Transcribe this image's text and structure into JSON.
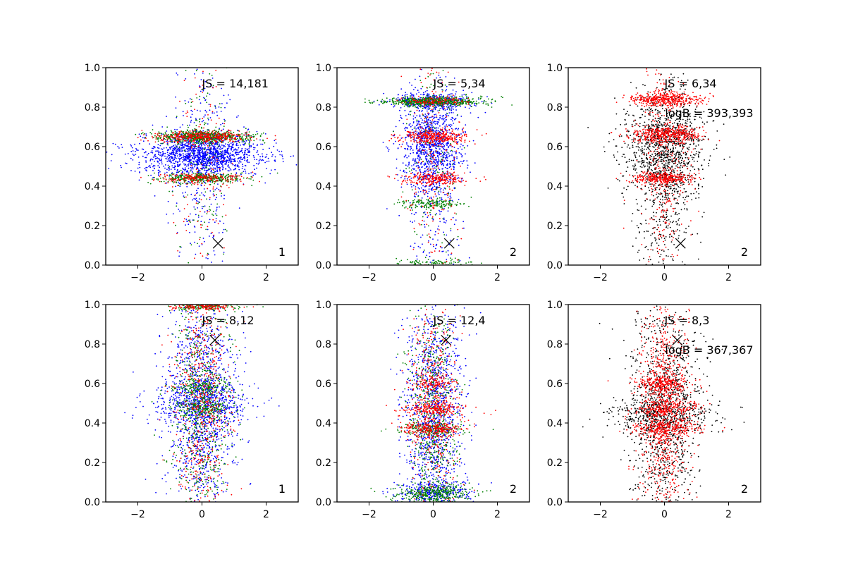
{
  "palette": {
    "blue": "#0000ff",
    "green": "#008000",
    "red": "#ff0000",
    "black": "#000000"
  },
  "axes_defaults": {
    "xlim": [
      -3,
      3
    ],
    "ylim": [
      0,
      1
    ],
    "xticks": [
      -2,
      0,
      2
    ],
    "yticks": [
      0.0,
      0.2,
      0.4,
      0.6,
      0.8,
      1.0
    ],
    "xtick_labels": [
      "−2",
      "0",
      "2"
    ],
    "ytick_labels": [
      "0.0",
      "0.2",
      "0.4",
      "0.6",
      "0.8",
      "1.0"
    ],
    "grid": false
  },
  "chart_data": [
    {
      "type": "scatter",
      "row": 0,
      "col": 0,
      "annotations": [
        "JS = 14,181"
      ],
      "corner_label": "1",
      "marker": {
        "x": 0.5,
        "y": 0.11,
        "symbol": "x"
      },
      "series": [
        {
          "color": "blue",
          "points": 1800,
          "clusters": [
            {
              "y": 0.56,
              "ysd": 0.05,
              "xsd": 0.95,
              "w": 0.8
            },
            {
              "y": 0.5,
              "ysd": 0.25,
              "xsd": 0.45,
              "w": 0.2
            }
          ]
        },
        {
          "color": "green",
          "points": 1100,
          "clusters": [
            {
              "y": 0.65,
              "ysd": 0.015,
              "xsd": 0.75,
              "w": 0.55
            },
            {
              "y": 0.44,
              "ysd": 0.012,
              "xsd": 0.65,
              "w": 0.3
            },
            {
              "y": 0.5,
              "ysd": 0.28,
              "xsd": 0.4,
              "w": 0.15
            }
          ]
        },
        {
          "color": "red",
          "points": 700,
          "clusters": [
            {
              "y": 0.65,
              "ysd": 0.015,
              "xsd": 0.75,
              "w": 0.5
            },
            {
              "y": 0.44,
              "ysd": 0.012,
              "xsd": 0.65,
              "w": 0.3
            },
            {
              "y": 0.5,
              "ysd": 0.28,
              "xsd": 0.4,
              "w": 0.2
            }
          ]
        }
      ]
    },
    {
      "type": "scatter",
      "row": 0,
      "col": 1,
      "annotations": [
        "JS = 5,34"
      ],
      "corner_label": "2",
      "marker": {
        "x": 0.5,
        "y": 0.11,
        "symbol": "x"
      },
      "series": [
        {
          "color": "blue",
          "points": 1600,
          "clusters": [
            {
              "y": 0.62,
              "ysd": 0.12,
              "xsd": 0.5,
              "w": 0.6
            },
            {
              "y": 0.83,
              "ysd": 0.02,
              "xsd": 0.6,
              "w": 0.2
            },
            {
              "y": 0.4,
              "ysd": 0.3,
              "xsd": 0.45,
              "w": 0.2
            }
          ]
        },
        {
          "color": "green",
          "points": 1000,
          "clusters": [
            {
              "y": 0.83,
              "ysd": 0.012,
              "xsd": 0.75,
              "w": 0.6
            },
            {
              "y": 0.31,
              "ysd": 0.012,
              "xsd": 0.5,
              "w": 0.15
            },
            {
              "y": 0.01,
              "ysd": 0.01,
              "xsd": 0.6,
              "w": 0.1
            },
            {
              "y": 0.5,
              "ysd": 0.3,
              "xsd": 0.4,
              "w": 0.15
            }
          ]
        },
        {
          "color": "red",
          "points": 900,
          "clusters": [
            {
              "y": 0.65,
              "ysd": 0.018,
              "xsd": 0.55,
              "w": 0.35
            },
            {
              "y": 0.44,
              "ysd": 0.015,
              "xsd": 0.5,
              "w": 0.25
            },
            {
              "y": 0.83,
              "ysd": 0.012,
              "xsd": 0.55,
              "w": 0.15
            },
            {
              "y": 0.5,
              "ysd": 0.3,
              "xsd": 0.4,
              "w": 0.25
            }
          ]
        }
      ]
    },
    {
      "type": "scatter",
      "row": 0,
      "col": 2,
      "annotations": [
        "JS = 6,34",
        "logB = 393,393"
      ],
      "corner_label": "2",
      "marker": {
        "x": 0.5,
        "y": 0.11,
        "symbol": "x"
      },
      "series": [
        {
          "color": "black",
          "points": 1500,
          "clusters": [
            {
              "y": 0.58,
              "ysd": 0.14,
              "xsd": 0.65,
              "w": 0.7
            },
            {
              "y": 0.4,
              "ysd": 0.3,
              "xsd": 0.45,
              "w": 0.3
            }
          ]
        },
        {
          "color": "red",
          "points": 1500,
          "clusters": [
            {
              "y": 0.84,
              "ysd": 0.018,
              "xsd": 0.55,
              "w": 0.3
            },
            {
              "y": 0.66,
              "ysd": 0.02,
              "xsd": 0.55,
              "w": 0.3
            },
            {
              "y": 0.44,
              "ysd": 0.015,
              "xsd": 0.5,
              "w": 0.2
            },
            {
              "y": 0.5,
              "ysd": 0.3,
              "xsd": 0.4,
              "w": 0.2
            }
          ]
        }
      ]
    },
    {
      "type": "scatter",
      "row": 1,
      "col": 0,
      "annotations": [
        "JS = 8,12"
      ],
      "corner_label": "1",
      "marker": {
        "x": 0.4,
        "y": 0.82,
        "symbol": "x"
      },
      "series": [
        {
          "color": "blue",
          "points": 1700,
          "clusters": [
            {
              "y": 0.5,
              "ysd": 0.28,
              "xsd": 0.55,
              "w": 0.75
            },
            {
              "y": 0.5,
              "ysd": 0.06,
              "xsd": 0.8,
              "w": 0.25
            }
          ]
        },
        {
          "color": "green",
          "points": 1100,
          "clusters": [
            {
              "y": 0.5,
              "ysd": 0.28,
              "xsd": 0.45,
              "w": 0.6
            },
            {
              "y": 0.99,
              "ysd": 0.01,
              "xsd": 0.5,
              "w": 0.15
            },
            {
              "y": 0.58,
              "ysd": 0.02,
              "xsd": 0.5,
              "w": 0.12
            },
            {
              "y": 0.48,
              "ysd": 0.02,
              "xsd": 0.5,
              "w": 0.13
            }
          ]
        },
        {
          "color": "red",
          "points": 700,
          "clusters": [
            {
              "y": 0.5,
              "ysd": 0.28,
              "xsd": 0.45,
              "w": 0.8
            },
            {
              "y": 0.99,
              "ysd": 0.01,
              "xsd": 0.45,
              "w": 0.2
            }
          ]
        }
      ]
    },
    {
      "type": "scatter",
      "row": 1,
      "col": 1,
      "annotations": [
        "JS = 12,4"
      ],
      "corner_label": "2",
      "marker": {
        "x": 0.4,
        "y": 0.82,
        "symbol": "x"
      },
      "series": [
        {
          "color": "blue",
          "points": 1500,
          "clusters": [
            {
              "y": 0.45,
              "ysd": 0.28,
              "xsd": 0.45,
              "w": 0.8
            },
            {
              "y": 0.04,
              "ysd": 0.03,
              "xsd": 0.6,
              "w": 0.2
            }
          ]
        },
        {
          "color": "green",
          "points": 1100,
          "clusters": [
            {
              "y": 0.45,
              "ysd": 0.28,
              "xsd": 0.4,
              "w": 0.55
            },
            {
              "y": 0.04,
              "ysd": 0.025,
              "xsd": 0.6,
              "w": 0.3
            },
            {
              "y": 0.37,
              "ysd": 0.015,
              "xsd": 0.5,
              "w": 0.15
            }
          ]
        },
        {
          "color": "red",
          "points": 1000,
          "clusters": [
            {
              "y": 0.47,
              "ysd": 0.018,
              "xsd": 0.5,
              "w": 0.22
            },
            {
              "y": 0.37,
              "ysd": 0.018,
              "xsd": 0.5,
              "w": 0.22
            },
            {
              "y": 0.6,
              "ysd": 0.015,
              "xsd": 0.4,
              "w": 0.1
            },
            {
              "y": 0.5,
              "ysd": 0.28,
              "xsd": 0.38,
              "w": 0.46
            }
          ]
        }
      ]
    },
    {
      "type": "scatter",
      "row": 1,
      "col": 2,
      "annotations": [
        "JS = 8,3",
        "logB = 367,367"
      ],
      "corner_label": "2",
      "marker": {
        "x": 0.4,
        "y": 0.82,
        "symbol": "x"
      },
      "series": [
        {
          "color": "black",
          "points": 1500,
          "clusters": [
            {
              "y": 0.45,
              "ysd": 0.28,
              "xsd": 0.55,
              "w": 0.75
            },
            {
              "y": 0.45,
              "ysd": 0.05,
              "xsd": 0.85,
              "w": 0.25
            }
          ]
        },
        {
          "color": "red",
          "points": 1600,
          "clusters": [
            {
              "y": 0.5,
              "ysd": 0.3,
              "xsd": 0.38,
              "w": 0.55
            },
            {
              "y": 0.47,
              "ysd": 0.02,
              "xsd": 0.55,
              "w": 0.15
            },
            {
              "y": 0.37,
              "ysd": 0.02,
              "xsd": 0.55,
              "w": 0.15
            },
            {
              "y": 0.6,
              "ysd": 0.02,
              "xsd": 0.45,
              "w": 0.15
            }
          ]
        }
      ]
    }
  ]
}
